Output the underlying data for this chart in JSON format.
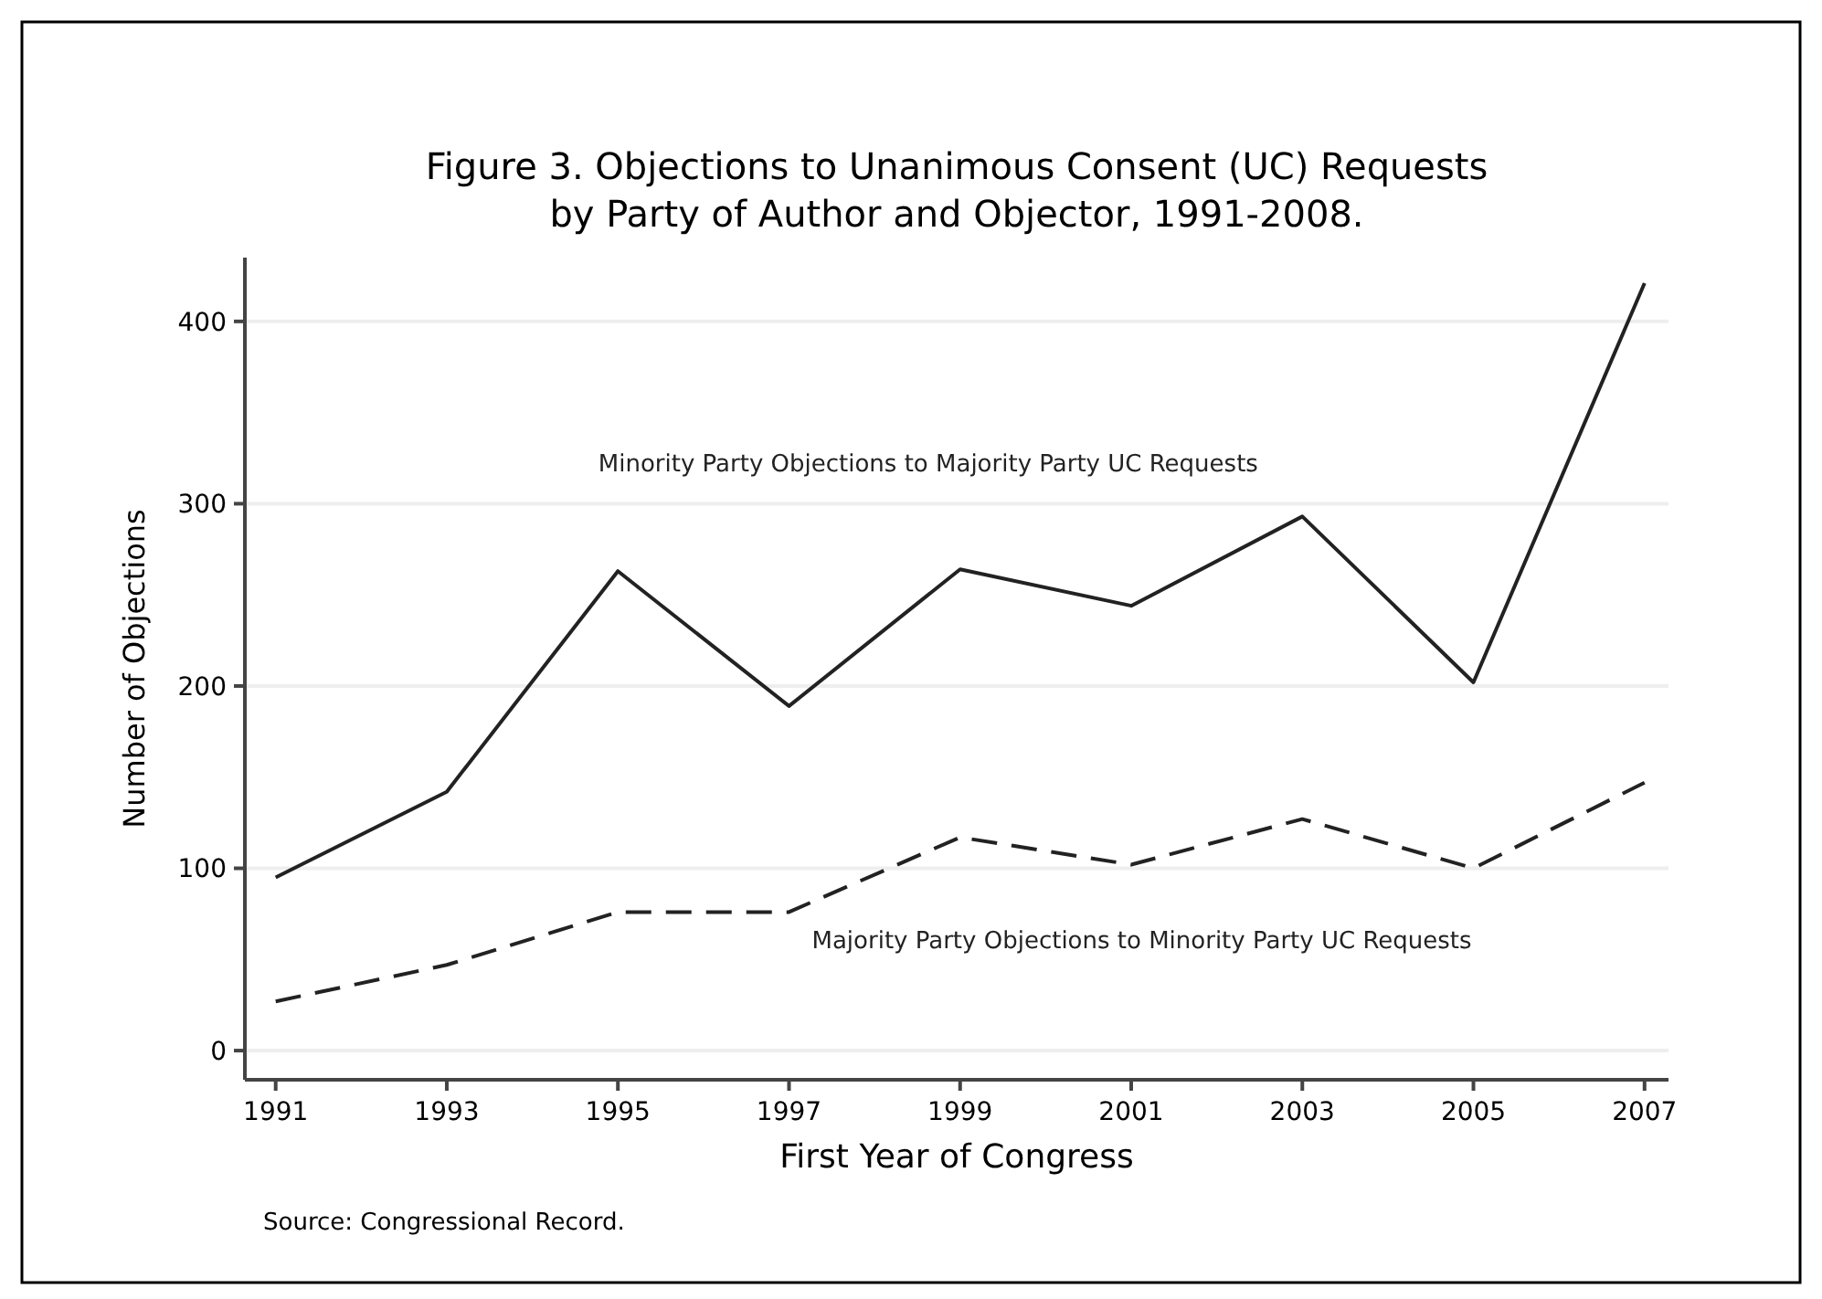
{
  "chart_data": {
    "type": "line",
    "title": "Figure 3.  Objections to Unanimous Consent (UC) Requests",
    "subtitle": "by Party of Author and Objector, 1991-2008.",
    "xlabel": "First Year of Congress",
    "ylabel": "Number of Objections",
    "annotations": [
      "Source: Congressional Record."
    ],
    "x": [
      1991,
      1993,
      1995,
      1997,
      1999,
      2001,
      2003,
      2005,
      2007
    ],
    "series": [
      {
        "name": "Minority Party Objections to Majority Party UC Requests",
        "color": "#222222",
        "line_style": "solid",
        "values": [
          95,
          142,
          263,
          189,
          264,
          244,
          293,
          202,
          421
        ]
      },
      {
        "name": "Majority Party Objections to Minority Party UC Requests",
        "color": "#222222",
        "line_style": "dashed",
        "values": [
          27,
          47,
          76,
          76,
          117,
          102,
          127,
          100,
          147
        ]
      }
    ],
    "xlim": [
      1990.64,
      2007.28
    ],
    "ylim": [
      -16,
      435
    ],
    "xticks": [
      1991,
      1993,
      1995,
      1997,
      1999,
      2001,
      2003,
      2005,
      2007
    ],
    "yticks": [
      0,
      100,
      200,
      300,
      400
    ],
    "grid": "y",
    "marker": "none"
  }
}
